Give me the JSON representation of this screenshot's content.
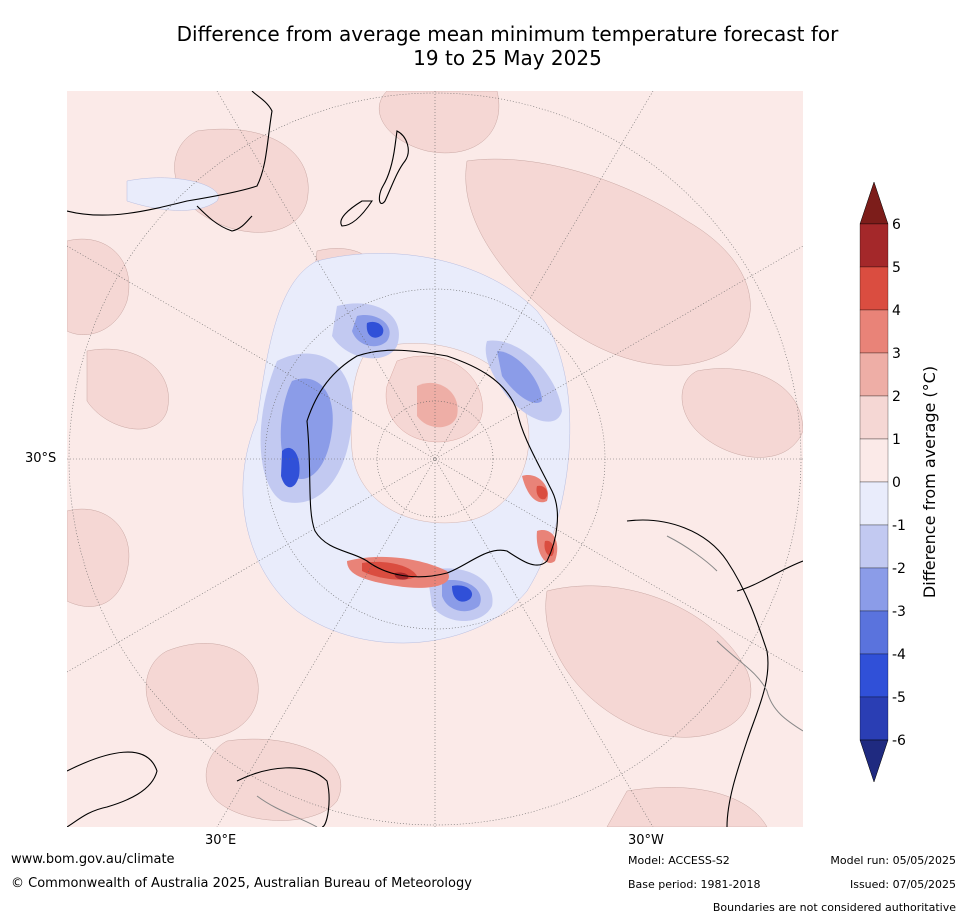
{
  "title": {
    "line1": "Difference from average mean minimum temperature forecast for",
    "line2": "19 to 25 May 2025"
  },
  "map": {
    "projection": "south-polar-stereographic",
    "labels": {
      "lat_left": "30°S",
      "lon_bottom_left": "30°E",
      "lon_bottom_right": "30°W"
    },
    "colors": {
      "ocean_background": "#fbeae8",
      "land_outline": "#000000",
      "boundary": "#888888",
      "gridline": "#666666"
    }
  },
  "colorbar": {
    "label": "Difference from average (°C)",
    "ticks": [
      "6",
      "5",
      "4",
      "3",
      "2",
      "1",
      "0",
      "-1",
      "-2",
      "-3",
      "-4",
      "-5",
      "-6"
    ],
    "colors": [
      "#a4282a",
      "#da4d40",
      "#e98378",
      "#eeaea6",
      "#f5d7d4",
      "#fbeae8",
      "#e9ecfb",
      "#c2c9f1",
      "#8b9ce8",
      "#5a73dd",
      "#3050d8",
      "#2a3eb4"
    ],
    "extend_top": "#7c1d1a",
    "extend_bottom": "#1f2a80"
  },
  "footer": {
    "website": "www.bom.gov.au/climate",
    "copyright": "© Commonwealth of Australia 2025, Australian Bureau of Meteorology",
    "model": "Model: ACCESS-S2",
    "base_period": "Base period: 1981-2018",
    "model_run": "Model run: 05/05/2025",
    "issued": "Issued: 07/05/2025",
    "disclaimer": "Boundaries are not considered authoritative"
  }
}
